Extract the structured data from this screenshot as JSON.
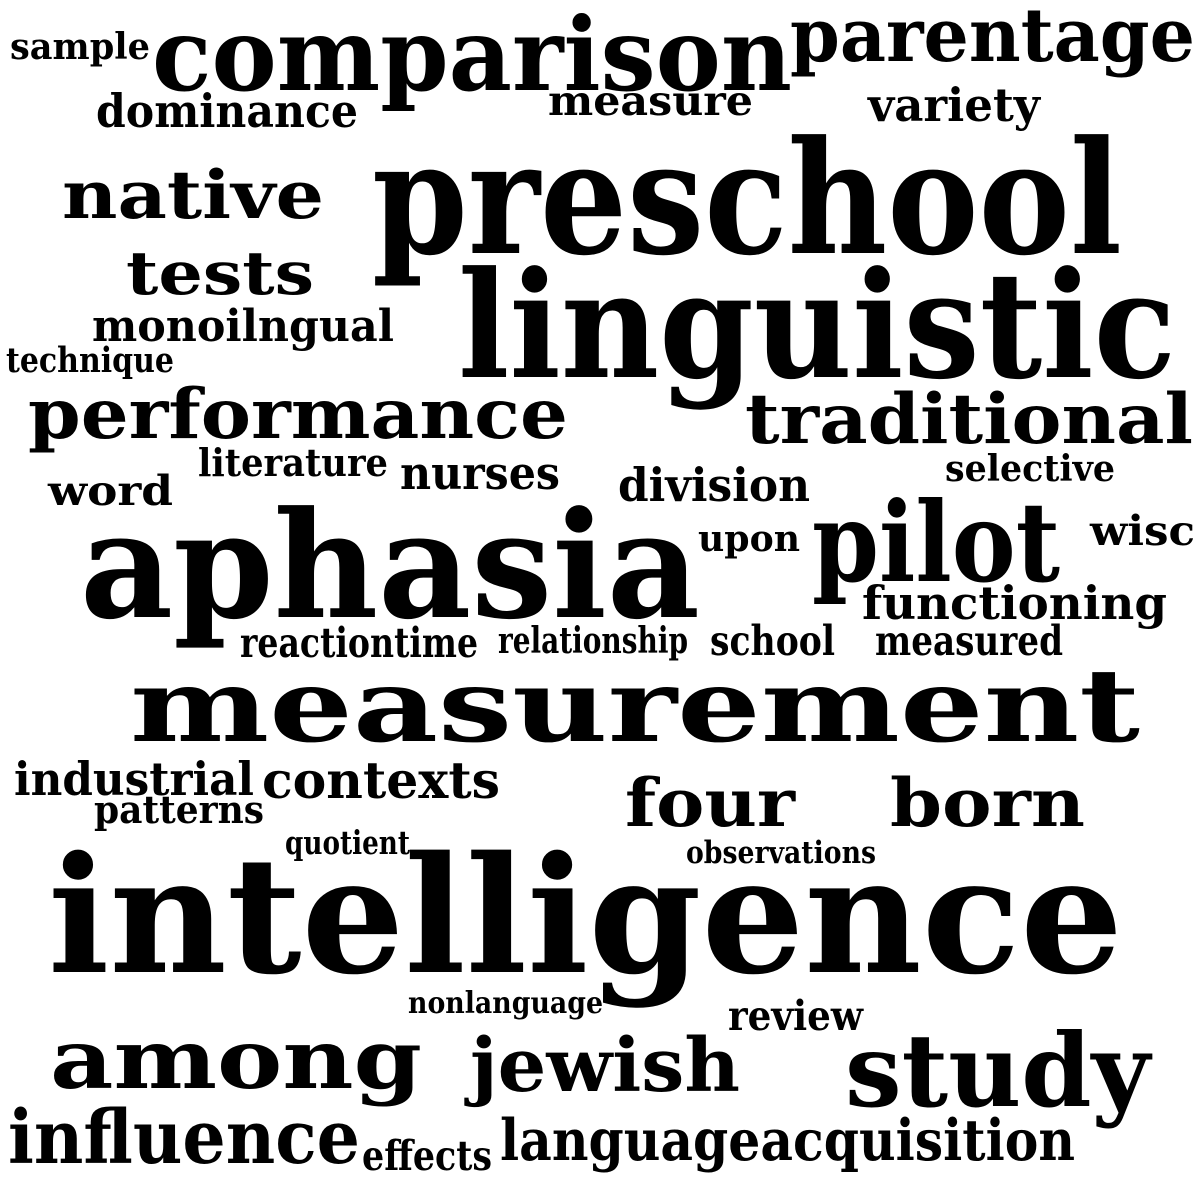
{
  "words": [
    {
      "text": "intelligence",
      "weight": 10
    },
    {
      "text": "measurement",
      "weight": 9
    },
    {
      "text": "preschool",
      "weight": 9
    },
    {
      "text": "linguistic",
      "weight": 9
    },
    {
      "text": "aphasia",
      "weight": 9
    },
    {
      "text": "comparison",
      "weight": 7
    },
    {
      "text": "parentage",
      "weight": 6
    },
    {
      "text": "pilot",
      "weight": 7
    },
    {
      "text": "study",
      "weight": 7
    },
    {
      "text": "among",
      "weight": 6
    },
    {
      "text": "traditional",
      "weight": 6
    },
    {
      "text": "performance",
      "weight": 5
    },
    {
      "text": "four",
      "weight": 5
    },
    {
      "text": "born",
      "weight": 5
    },
    {
      "text": "native",
      "weight": 5
    },
    {
      "text": "tests",
      "weight": 5
    },
    {
      "text": "influence",
      "weight": 5
    },
    {
      "text": "jewish",
      "weight": 5
    },
    {
      "text": "languageacquisition",
      "weight": 4
    },
    {
      "text": "functioning",
      "weight": 3
    },
    {
      "text": "contexts",
      "weight": 3
    },
    {
      "text": "division",
      "weight": 3
    },
    {
      "text": "nurses",
      "weight": 3
    },
    {
      "text": "dominance",
      "weight": 3
    },
    {
      "text": "measure",
      "weight": 3
    },
    {
      "text": "variety",
      "weight": 3
    },
    {
      "text": "monoilngual",
      "weight": 3
    },
    {
      "text": "word",
      "weight": 3
    },
    {
      "text": "industrial",
      "weight": 3
    },
    {
      "text": "school",
      "weight": 2
    },
    {
      "text": "measured",
      "weight": 2
    },
    {
      "text": "wisc",
      "weight": 2
    },
    {
      "text": "review",
      "weight": 2
    },
    {
      "text": "effects",
      "weight": 2
    },
    {
      "text": "upon",
      "weight": 2
    },
    {
      "text": "selective",
      "weight": 2
    },
    {
      "text": "literature",
      "weight": 2
    },
    {
      "text": "reactiontime",
      "weight": 2
    },
    {
      "text": "relationship",
      "weight": 2
    },
    {
      "text": "patterns",
      "weight": 2
    },
    {
      "text": "sample",
      "weight": 2
    },
    {
      "text": "technique",
      "weight": 2
    },
    {
      "text": "quotient",
      "weight": 1
    },
    {
      "text": "observations",
      "weight": 1
    },
    {
      "text": "nonlanguage",
      "weight": 1
    }
  ]
}
